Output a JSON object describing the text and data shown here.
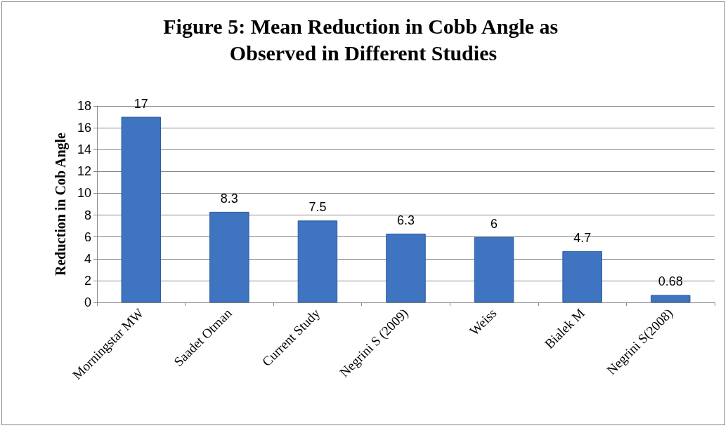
{
  "chart_data": {
    "type": "bar",
    "title": "Figure 5: Mean Reduction in Cobb Angle as Observed in Different Studies",
    "ylabel": "Reduction in Cob Angle",
    "categories": [
      "Morningstar MW",
      "Saadet Otman",
      "Current Study",
      "Negrini S (2009)",
      "Weiss",
      "Bialek M",
      "Negrini S(2008)"
    ],
    "values": [
      17,
      8.3,
      7.5,
      6.3,
      6,
      4.7,
      0.68
    ],
    "color": "#3f74c0",
    "ylim": [
      0,
      18
    ],
    "yticks": [
      0,
      2,
      4,
      6,
      8,
      10,
      12,
      14,
      16,
      18
    ],
    "grid": "y",
    "data_labels": true
  }
}
